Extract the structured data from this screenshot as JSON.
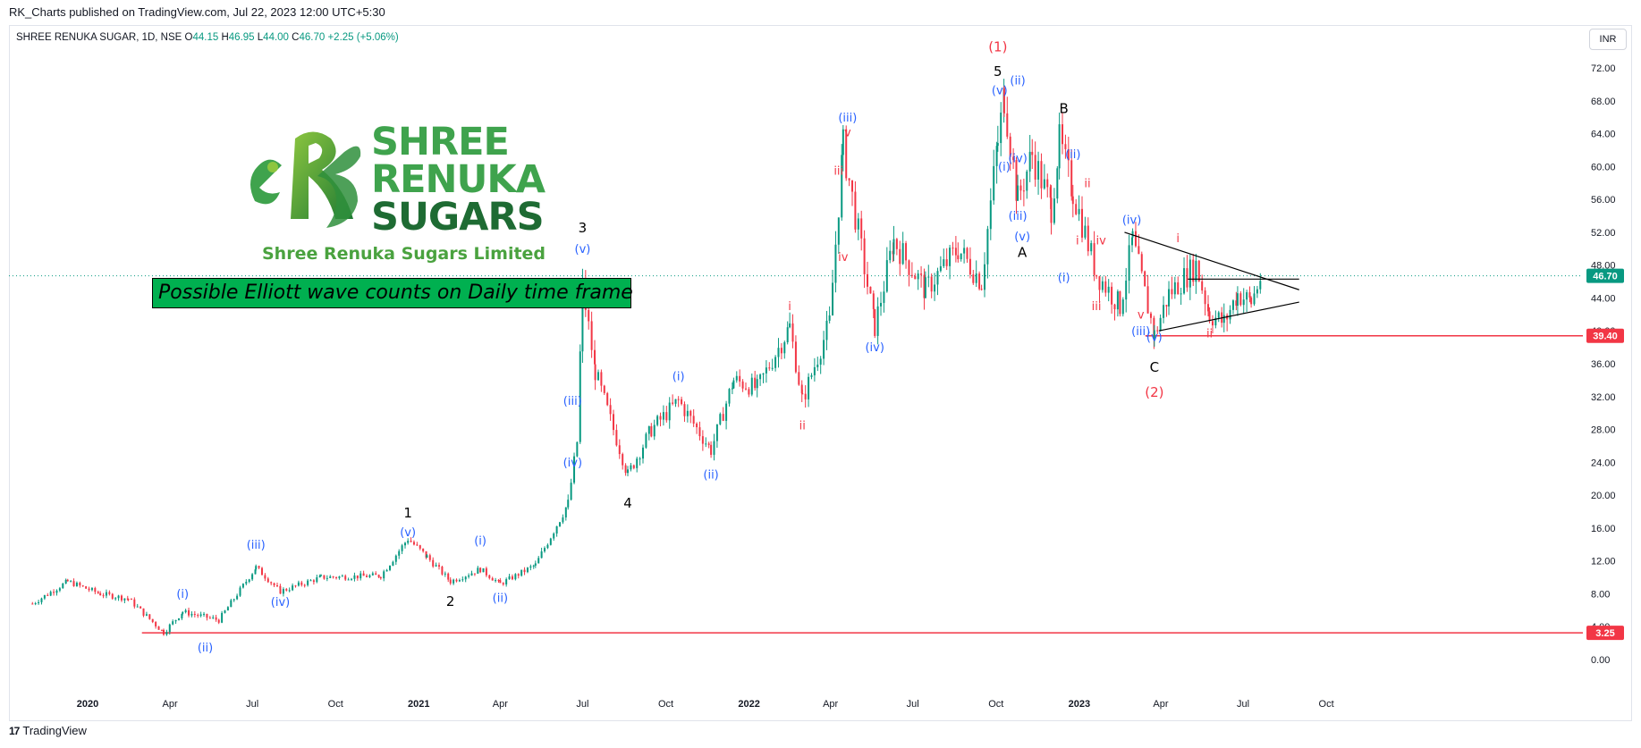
{
  "publisher_line": "RK_Charts published on TradingView.com, Jul 22, 2023 12:00 UTC+5:30",
  "symbol": {
    "name": "SHREE RENUKA SUGAR, 1D, NSE",
    "open_label": "O",
    "open": "44.15",
    "high_label": "H",
    "high": "46.95",
    "low_label": "L",
    "low": "44.00",
    "close_label": "C",
    "close": "46.70",
    "change": "+2.25 (+5.06%)"
  },
  "currency": "INR",
  "logo": {
    "lines": [
      "SHREE",
      "RENUKA",
      "SUGARS"
    ],
    "company": "Shree Renuka Sugars Limited"
  },
  "title_box": "Possible Elliott wave counts on Daily time frame",
  "footer": {
    "brand": "TradingView"
  },
  "colors": {
    "up": "#089981",
    "down": "#f23645",
    "wave_blue": "#2962ff",
    "wave_red": "#f23645",
    "support_line": "#f23645",
    "price_tag_current": "#089981",
    "price_tag_support": "#f23645",
    "logo_green": "#3fa34d",
    "box_green": "#00b050"
  },
  "chart_data": {
    "type": "candlestick",
    "title": "",
    "xlabel": "",
    "ylabel": "",
    "ylim": [
      -2,
      75
    ],
    "y_ticks": [
      "0.00",
      "4.00",
      "8.00",
      "12.00",
      "16.00",
      "20.00",
      "24.00",
      "28.00",
      "32.00",
      "36.00",
      "40.00",
      "44.00",
      "48.00",
      "52.00",
      "56.00",
      "60.00",
      "64.00",
      "68.00",
      "72.00"
    ],
    "x_ticks": [
      "2020",
      "Apr",
      "Jul",
      "Oct",
      "2021",
      "Apr",
      "Jul",
      "Oct",
      "2022",
      "Apr",
      "Jul",
      "Oct",
      "2023",
      "Apr",
      "Jul",
      "Oct"
    ],
    "grid": false,
    "price_path": [
      [
        "2019-11-01",
        6.8
      ],
      [
        "2019-12-10",
        9.5
      ],
      [
        "2020-01-15",
        8.0
      ],
      [
        "2020-02-15",
        7.4
      ],
      [
        "2020-03-25",
        3.3
      ],
      [
        "2020-04-15",
        5.8
      ],
      [
        "2020-05-25",
        4.8
      ],
      [
        "2020-07-05",
        11.2
      ],
      [
        "2020-08-01",
        8.3
      ],
      [
        "2020-09-15",
        10.0
      ],
      [
        "2020-11-20",
        10.2
      ],
      [
        "2020-12-20",
        14.7
      ],
      [
        "2021-01-10",
        12.5
      ],
      [
        "2021-02-05",
        9.5
      ],
      [
        "2021-03-10",
        11.0
      ],
      [
        "2021-04-01",
        9.2
      ],
      [
        "2021-05-10",
        11.5
      ],
      [
        "2021-06-15",
        19.0
      ],
      [
        "2021-06-25",
        26.5
      ],
      [
        "2021-07-01",
        45.5
      ],
      [
        "2021-07-15",
        35.0
      ],
      [
        "2021-08-20",
        22.5
      ],
      [
        "2021-09-15",
        28.0
      ],
      [
        "2021-10-15",
        31.5
      ],
      [
        "2021-11-20",
        25.5
      ],
      [
        "2021-12-15",
        34.0
      ],
      [
        "2022-01-10",
        33.0
      ],
      [
        "2022-02-15",
        40.5
      ],
      [
        "2022-03-01",
        31.5
      ],
      [
        "2022-03-31",
        41.0
      ],
      [
        "2022-04-15",
        62.5
      ],
      [
        "2022-05-20",
        40.5
      ],
      [
        "2022-06-10",
        51.0
      ],
      [
        "2022-07-15",
        45.0
      ],
      [
        "2022-08-20",
        50.0
      ],
      [
        "2022-09-15",
        46.0
      ],
      [
        "2022-10-03",
        63.0
      ],
      [
        "2022-10-10",
        68.5
      ],
      [
        "2022-10-25",
        56.0
      ],
      [
        "2022-11-10",
        61.5
      ],
      [
        "2022-12-01",
        55.0
      ],
      [
        "2022-12-10",
        63.0
      ],
      [
        "2022-12-25",
        57.0
      ],
      [
        "2023-01-20",
        47.0
      ],
      [
        "2023-02-15",
        43.0
      ],
      [
        "2023-03-01",
        51.0
      ],
      [
        "2023-03-25",
        39.5
      ],
      [
        "2023-04-10",
        44.5
      ],
      [
        "2023-05-10",
        48.0
      ],
      [
        "2023-05-25",
        42.0
      ],
      [
        "2023-06-10",
        41.0
      ],
      [
        "2023-06-25",
        44.5
      ],
      [
        "2023-07-10",
        43.5
      ],
      [
        "2023-07-21",
        46.7
      ]
    ],
    "horizontal_lines": [
      {
        "price": 3.25,
        "label": "3.25",
        "start": "2020-03-01"
      },
      {
        "price": 39.4,
        "label": "39.40",
        "start": "2023-03-15"
      }
    ],
    "current_price": {
      "price": 46.7,
      "label": "46.70"
    },
    "trendlines": [
      {
        "from": [
          "2023-02-20",
          52.0
        ],
        "to": [
          "2023-09-01",
          45.0
        ]
      },
      {
        "from": [
          "2023-03-30",
          40.0
        ],
        "to": [
          "2023-09-01",
          43.5
        ]
      },
      {
        "from": [
          "2023-05-01",
          46.3
        ],
        "to": [
          "2023-09-01",
          46.3
        ]
      }
    ],
    "wave_labels": [
      {
        "text": "(i)",
        "date": "2020-04-15",
        "price": 7.5,
        "color": "blue"
      },
      {
        "text": "(ii)",
        "date": "2020-05-10",
        "price": 1.0,
        "color": "blue"
      },
      {
        "text": "(iii)",
        "date": "2020-07-05",
        "price": 13.5,
        "color": "blue"
      },
      {
        "text": "(iv)",
        "date": "2020-08-01",
        "price": 6.5,
        "color": "blue"
      },
      {
        "text": "1",
        "date": "2020-12-20",
        "price": 17.3,
        "color": "black"
      },
      {
        "text": "(v)",
        "date": "2020-12-20",
        "price": 15.0,
        "color": "blue"
      },
      {
        "text": "2",
        "date": "2021-02-05",
        "price": 6.5,
        "color": "black"
      },
      {
        "text": "(i)",
        "date": "2021-03-10",
        "price": 14.0,
        "color": "blue"
      },
      {
        "text": "(ii)",
        "date": "2021-04-01",
        "price": 7.0,
        "color": "blue"
      },
      {
        "text": "(iii)",
        "date": "2021-06-20",
        "price": 31.0,
        "color": "blue"
      },
      {
        "text": "(iv)",
        "date": "2021-06-20",
        "price": 23.5,
        "color": "blue"
      },
      {
        "text": "3",
        "date": "2021-07-01",
        "price": 52.0,
        "color": "black"
      },
      {
        "text": "(v)",
        "date": "2021-07-01",
        "price": 49.5,
        "color": "blue"
      },
      {
        "text": "4",
        "date": "2021-08-20",
        "price": 18.5,
        "color": "black"
      },
      {
        "text": "(i)",
        "date": "2021-10-15",
        "price": 34.0,
        "color": "blue"
      },
      {
        "text": "(ii)",
        "date": "2021-11-20",
        "price": 22.0,
        "color": "blue"
      },
      {
        "text": "i",
        "date": "2022-02-15",
        "price": 42.5,
        "color": "red"
      },
      {
        "text": "ii",
        "date": "2022-03-01",
        "price": 28.0,
        "color": "red"
      },
      {
        "text": "(iii)",
        "date": "2022-04-20",
        "price": 65.5,
        "color": "blue"
      },
      {
        "text": "v",
        "date": "2022-04-20",
        "price": 63.7,
        "color": "red"
      },
      {
        "text": "iii",
        "date": "2022-04-10",
        "price": 59.0,
        "color": "red"
      },
      {
        "text": "iv",
        "date": "2022-04-15",
        "price": 48.5,
        "color": "red"
      },
      {
        "text": "(iv)",
        "date": "2022-05-20",
        "price": 37.5,
        "color": "blue"
      },
      {
        "text": "(1)",
        "date": "2022-10-03",
        "price": 74.0,
        "color": "red"
      },
      {
        "text": "5",
        "date": "2022-10-03",
        "price": 71.0,
        "color": "black"
      },
      {
        "text": "(ii)",
        "date": "2022-10-25",
        "price": 70.0,
        "color": "blue"
      },
      {
        "text": "(v)",
        "date": "2022-10-05",
        "price": 68.8,
        "color": "blue"
      },
      {
        "text": "(i)",
        "date": "2022-10-10",
        "price": 59.5,
        "color": "blue"
      },
      {
        "text": "(iv)",
        "date": "2022-10-25",
        "price": 60.5,
        "color": "blue"
      },
      {
        "text": "(iii)",
        "date": "2022-10-25",
        "price": 53.5,
        "color": "blue"
      },
      {
        "text": "(v)",
        "date": "2022-10-30",
        "price": 51.0,
        "color": "blue"
      },
      {
        "text": "A",
        "date": "2022-10-30",
        "price": 49.0,
        "color": "black"
      },
      {
        "text": "B",
        "date": "2022-12-15",
        "price": 66.5,
        "color": "black"
      },
      {
        "text": "(ii)",
        "date": "2022-12-25",
        "price": 61.0,
        "color": "blue"
      },
      {
        "text": "ii",
        "date": "2023-01-10",
        "price": 57.5,
        "color": "red"
      },
      {
        "text": "i",
        "date": "2022-12-30",
        "price": 50.5,
        "color": "red"
      },
      {
        "text": "(i)",
        "date": "2022-12-15",
        "price": 46.0,
        "color": "blue"
      },
      {
        "text": "iv",
        "date": "2023-01-25",
        "price": 50.5,
        "color": "red"
      },
      {
        "text": "iii",
        "date": "2023-01-20",
        "price": 42.5,
        "color": "red"
      },
      {
        "text": "(iv)",
        "date": "2023-02-28",
        "price": 53.0,
        "color": "blue"
      },
      {
        "text": "i",
        "date": "2023-04-20",
        "price": 50.8,
        "color": "red"
      },
      {
        "text": "(iii)",
        "date": "2023-03-10",
        "price": 39.5,
        "color": "blue"
      },
      {
        "text": "v",
        "date": "2023-03-10",
        "price": 41.5,
        "color": "red"
      },
      {
        "text": "(v)",
        "date": "2023-03-25",
        "price": 38.8,
        "color": "blue"
      },
      {
        "text": "ii",
        "date": "2023-05-25",
        "price": 39.2,
        "color": "red"
      },
      {
        "text": "C",
        "date": "2023-03-25",
        "price": 35.0,
        "color": "black"
      },
      {
        "text": "(2)",
        "date": "2023-03-25",
        "price": 32.0,
        "color": "red"
      }
    ]
  }
}
